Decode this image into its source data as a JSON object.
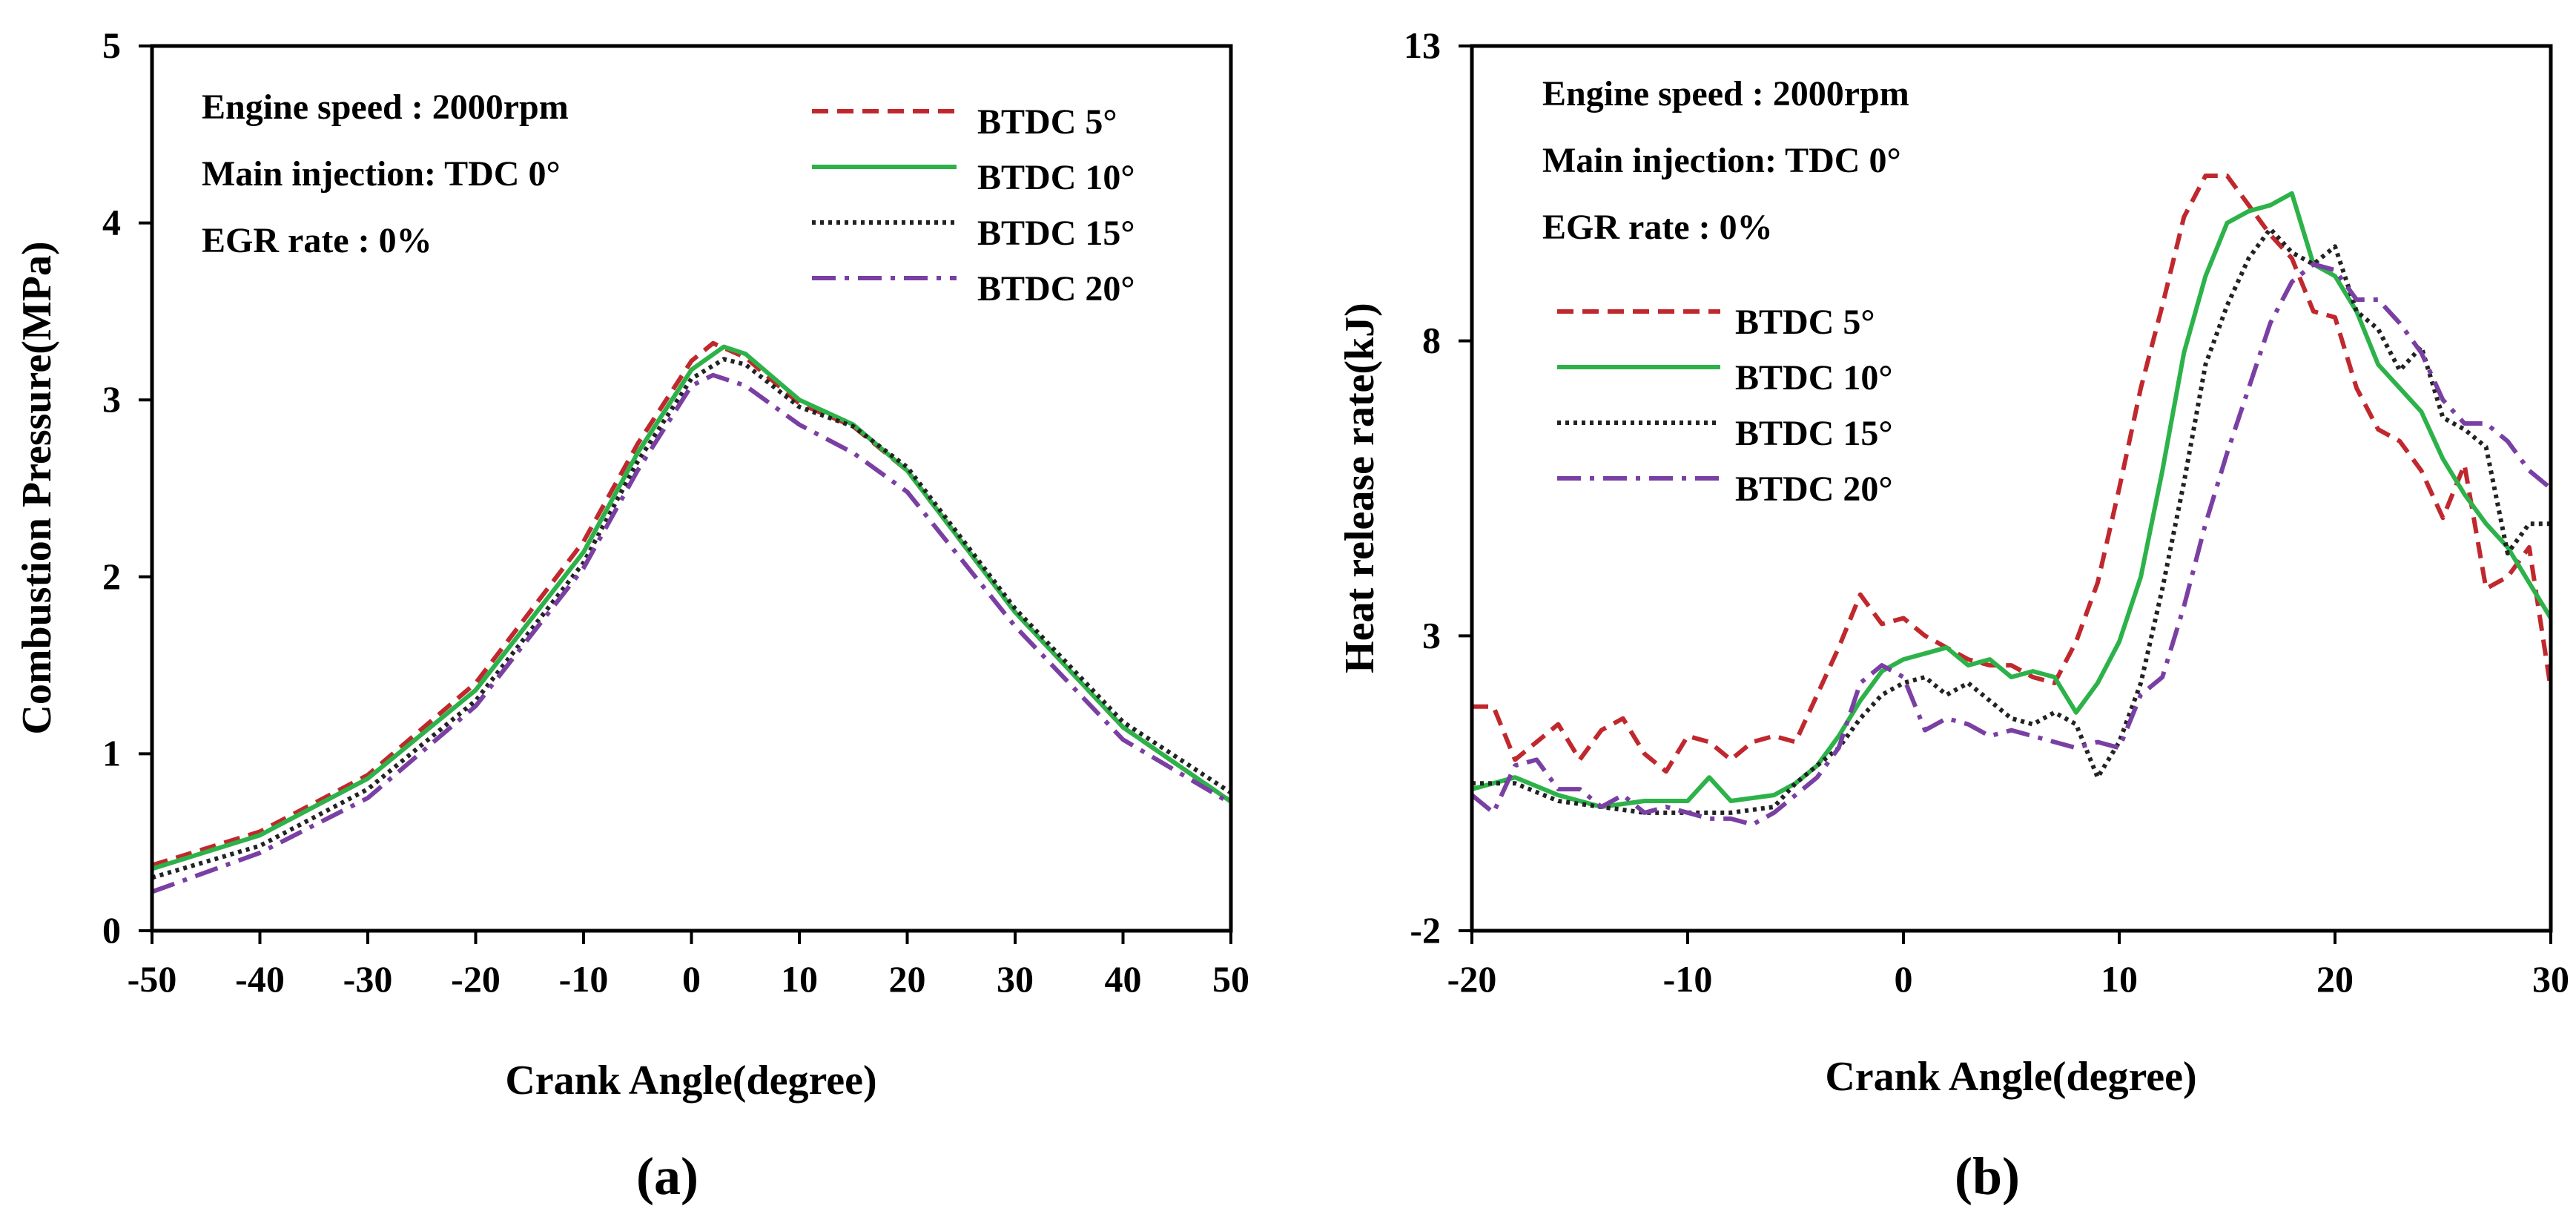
{
  "chart_data": [
    {
      "panel": "a",
      "type": "line",
      "panel_label_open": "(",
      "panel_label_letter": "a",
      "panel_label_close": ")",
      "xlabel": "Crank Angle(degree)",
      "ylabel": "Combustion Pressure(MPa)",
      "xlim": [
        -50,
        50
      ],
      "ylim": [
        0,
        5
      ],
      "xticks": [
        -50,
        -40,
        -30,
        -20,
        -10,
        0,
        10,
        20,
        30,
        40,
        50
      ],
      "yticks": [
        0,
        1,
        2,
        3,
        4,
        5
      ],
      "annotations": [
        "Engine speed : 2000rpm",
        "Main injection: TDC 0°",
        "EGR rate : 0%"
      ],
      "series": [
        {
          "name": "BTDC 5°",
          "color": "#c0282d",
          "dash": "dash",
          "points": [
            [
              -50,
              0.37
            ],
            [
              -40,
              0.56
            ],
            [
              -30,
              0.88
            ],
            [
              -20,
              1.4
            ],
            [
              -10,
              2.2
            ],
            [
              -5,
              2.75
            ],
            [
              0,
              3.22
            ],
            [
              2,
              3.32
            ],
            [
              5,
              3.24
            ],
            [
              10,
              2.98
            ],
            [
              15,
              2.85
            ],
            [
              20,
              2.6
            ],
            [
              30,
              1.8
            ],
            [
              40,
              1.15
            ],
            [
              50,
              0.73
            ]
          ]
        },
        {
          "name": "BTDC 10°",
          "color": "#2db24a",
          "dash": "solid",
          "points": [
            [
              -50,
              0.35
            ],
            [
              -40,
              0.54
            ],
            [
              -30,
              0.86
            ],
            [
              -20,
              1.36
            ],
            [
              -10,
              2.14
            ],
            [
              -5,
              2.7
            ],
            [
              0,
              3.17
            ],
            [
              3,
              3.3
            ],
            [
              5,
              3.26
            ],
            [
              10,
              3.0
            ],
            [
              15,
              2.86
            ],
            [
              20,
              2.6
            ],
            [
              30,
              1.8
            ],
            [
              40,
              1.15
            ],
            [
              50,
              0.73
            ]
          ]
        },
        {
          "name": "BTDC 15°",
          "color": "#222222",
          "dash": "dot",
          "points": [
            [
              -50,
              0.3
            ],
            [
              -40,
              0.48
            ],
            [
              -30,
              0.8
            ],
            [
              -20,
              1.3
            ],
            [
              -10,
              2.08
            ],
            [
              -5,
              2.65
            ],
            [
              0,
              3.12
            ],
            [
              3,
              3.23
            ],
            [
              5,
              3.2
            ],
            [
              10,
              2.96
            ],
            [
              15,
              2.85
            ],
            [
              20,
              2.62
            ],
            [
              30,
              1.82
            ],
            [
              40,
              1.18
            ],
            [
              50,
              0.78
            ]
          ]
        },
        {
          "name": "BTDC 20°",
          "color": "#7a3fa3",
          "dash": "dashdot",
          "points": [
            [
              -50,
              0.22
            ],
            [
              -40,
              0.44
            ],
            [
              -30,
              0.75
            ],
            [
              -20,
              1.27
            ],
            [
              -10,
              2.05
            ],
            [
              -5,
              2.6
            ],
            [
              0,
              3.08
            ],
            [
              2,
              3.14
            ],
            [
              5,
              3.08
            ],
            [
              10,
              2.86
            ],
            [
              15,
              2.7
            ],
            [
              20,
              2.48
            ],
            [
              30,
              1.72
            ],
            [
              40,
              1.08
            ],
            [
              50,
              0.72
            ]
          ]
        }
      ]
    },
    {
      "panel": "b",
      "type": "line",
      "panel_label_open": "(",
      "panel_label_letter": "b",
      "panel_label_close": ")",
      "xlabel": "Crank Angle(degree)",
      "ylabel": "Heat release  rate(kJ)",
      "xlim": [
        -20,
        30
      ],
      "ylim": [
        -2,
        13
      ],
      "xticks": [
        -20,
        -10,
        0,
        10,
        20,
        30
      ],
      "yticks": [
        -2,
        3,
        8,
        13
      ],
      "annotations": [
        "Engine speed : 2000rpm",
        "Main injection: TDC 0°",
        "EGR rate : 0%"
      ],
      "series": [
        {
          "name": "BTDC 5°",
          "color": "#c0282d",
          "dash": "dash",
          "points": [
            [
              -20,
              1.8
            ],
            [
              -19,
              1.8
            ],
            [
              -18,
              0.9
            ],
            [
              -17,
              1.2
            ],
            [
              -16,
              1.5
            ],
            [
              -15,
              0.9
            ],
            [
              -14,
              1.4
            ],
            [
              -13,
              1.6
            ],
            [
              -12,
              1.0
            ],
            [
              -11,
              0.7
            ],
            [
              -10,
              1.3
            ],
            [
              -9,
              1.2
            ],
            [
              -8,
              0.9
            ],
            [
              -7,
              1.2
            ],
            [
              -6,
              1.3
            ],
            [
              -5,
              1.2
            ],
            [
              -4,
              2.0
            ],
            [
              -3,
              2.8
            ],
            [
              -2,
              3.7
            ],
            [
              -1,
              3.2
            ],
            [
              0,
              3.3
            ],
            [
              1,
              3.0
            ],
            [
              2,
              2.8
            ],
            [
              3,
              2.6
            ],
            [
              4,
              2.5
            ],
            [
              5,
              2.5
            ],
            [
              6,
              2.3
            ],
            [
              7,
              2.2
            ],
            [
              8,
              2.9
            ],
            [
              9,
              3.9
            ],
            [
              10,
              5.5
            ],
            [
              11,
              7.2
            ],
            [
              12,
              8.6
            ],
            [
              13,
              10.1
            ],
            [
              14,
              10.8
            ],
            [
              15,
              10.8
            ],
            [
              16,
              10.3
            ],
            [
              17,
              9.8
            ],
            [
              18,
              9.4
            ],
            [
              19,
              8.5
            ],
            [
              20,
              8.4
            ],
            [
              21,
              7.2
            ],
            [
              22,
              6.5
            ],
            [
              23,
              6.3
            ],
            [
              24,
              5.8
            ],
            [
              25,
              5.0
            ],
            [
              26,
              5.9
            ],
            [
              27,
              3.8
            ],
            [
              28,
              4.0
            ],
            [
              29,
              4.5
            ],
            [
              30,
              2.1
            ]
          ]
        },
        {
          "name": "BTDC 10°",
          "color": "#2db24a",
          "dash": "solid",
          "points": [
            [
              -20,
              0.4
            ],
            [
              -18,
              0.6
            ],
            [
              -16,
              0.3
            ],
            [
              -14,
              0.1
            ],
            [
              -12,
              0.2
            ],
            [
              -10,
              0.2
            ],
            [
              -9,
              0.6
            ],
            [
              -8,
              0.2
            ],
            [
              -6,
              0.3
            ],
            [
              -5,
              0.5
            ],
            [
              -4,
              0.8
            ],
            [
              -3,
              1.3
            ],
            [
              -2,
              1.9
            ],
            [
              -1,
              2.4
            ],
            [
              0,
              2.6
            ],
            [
              1,
              2.7
            ],
            [
              2,
              2.8
            ],
            [
              3,
              2.5
            ],
            [
              4,
              2.6
            ],
            [
              5,
              2.3
            ],
            [
              6,
              2.4
            ],
            [
              7,
              2.3
            ],
            [
              8,
              1.7
            ],
            [
              9,
              2.2
            ],
            [
              10,
              2.9
            ],
            [
              11,
              4.0
            ],
            [
              12,
              5.8
            ],
            [
              13,
              7.8
            ],
            [
              14,
              9.1
            ],
            [
              15,
              10.0
            ],
            [
              16,
              10.2
            ],
            [
              17,
              10.3
            ],
            [
              18,
              10.5
            ],
            [
              19,
              9.3
            ],
            [
              20,
              9.1
            ],
            [
              21,
              8.5
            ],
            [
              22,
              7.6
            ],
            [
              23,
              7.2
            ],
            [
              24,
              6.8
            ],
            [
              25,
              6.0
            ],
            [
              26,
              5.4
            ],
            [
              27,
              4.9
            ],
            [
              28,
              4.5
            ],
            [
              29,
              3.9
            ],
            [
              30,
              3.3
            ]
          ]
        },
        {
          "name": "BTDC 15°",
          "color": "#222222",
          "dash": "dot",
          "points": [
            [
              -20,
              0.5
            ],
            [
              -18,
              0.5
            ],
            [
              -16,
              0.2
            ],
            [
              -14,
              0.1
            ],
            [
              -12,
              0.0
            ],
            [
              -10,
              0.0
            ],
            [
              -8,
              0.0
            ],
            [
              -6,
              0.1
            ],
            [
              -5,
              0.5
            ],
            [
              -4,
              0.8
            ],
            [
              -3,
              1.1
            ],
            [
              -2,
              1.6
            ],
            [
              -1,
              2.0
            ],
            [
              0,
              2.2
            ],
            [
              1,
              2.3
            ],
            [
              2,
              2.0
            ],
            [
              3,
              2.2
            ],
            [
              4,
              1.9
            ],
            [
              5,
              1.6
            ],
            [
              6,
              1.5
            ],
            [
              7,
              1.7
            ],
            [
              8,
              1.5
            ],
            [
              9,
              0.6
            ],
            [
              10,
              1.2
            ],
            [
              11,
              2.2
            ],
            [
              12,
              3.8
            ],
            [
              13,
              5.6
            ],
            [
              14,
              7.6
            ],
            [
              15,
              8.6
            ],
            [
              16,
              9.4
            ],
            [
              17,
              9.9
            ],
            [
              18,
              9.5
            ],
            [
              19,
              9.3
            ],
            [
              20,
              9.6
            ],
            [
              21,
              8.5
            ],
            [
              22,
              8.2
            ],
            [
              23,
              7.5
            ],
            [
              24,
              7.9
            ],
            [
              25,
              6.7
            ],
            [
              26,
              6.5
            ],
            [
              27,
              6.2
            ],
            [
              28,
              4.4
            ],
            [
              29,
              4.9
            ],
            [
              30,
              4.9
            ]
          ]
        },
        {
          "name": "BTDC 20°",
          "color": "#7a3fa3",
          "dash": "dashdot",
          "points": [
            [
              -20,
              0.3
            ],
            [
              -19,
              0.0
            ],
            [
              -18,
              0.8
            ],
            [
              -17,
              0.9
            ],
            [
              -16,
              0.4
            ],
            [
              -15,
              0.4
            ],
            [
              -14,
              0.1
            ],
            [
              -13,
              0.3
            ],
            [
              -12,
              0.0
            ],
            [
              -11,
              0.1
            ],
            [
              -10,
              0.0
            ],
            [
              -9,
              -0.1
            ],
            [
              -8,
              -0.1
            ],
            [
              -7,
              -0.2
            ],
            [
              -6,
              0.0
            ],
            [
              -5,
              0.3
            ],
            [
              -4,
              0.6
            ],
            [
              -3,
              1.1
            ],
            [
              -2,
              2.2
            ],
            [
              -1,
              2.5
            ],
            [
              0,
              2.3
            ],
            [
              1,
              1.4
            ],
            [
              2,
              1.6
            ],
            [
              3,
              1.5
            ],
            [
              4,
              1.3
            ],
            [
              5,
              1.4
            ],
            [
              6,
              1.3
            ],
            [
              7,
              1.2
            ],
            [
              8,
              1.1
            ],
            [
              9,
              1.2
            ],
            [
              10,
              1.1
            ],
            [
              11,
              2.0
            ],
            [
              12,
              2.3
            ],
            [
              13,
              3.5
            ],
            [
              14,
              4.9
            ],
            [
              15,
              6.1
            ],
            [
              16,
              7.2
            ],
            [
              17,
              8.3
            ],
            [
              18,
              9.0
            ],
            [
              19,
              9.3
            ],
            [
              20,
              9.2
            ],
            [
              21,
              8.7
            ],
            [
              22,
              8.7
            ],
            [
              23,
              8.3
            ],
            [
              24,
              7.8
            ],
            [
              25,
              7.0
            ],
            [
              26,
              6.6
            ],
            [
              27,
              6.6
            ],
            [
              28,
              6.3
            ],
            [
              29,
              5.8
            ],
            [
              30,
              5.5
            ]
          ]
        }
      ]
    }
  ]
}
